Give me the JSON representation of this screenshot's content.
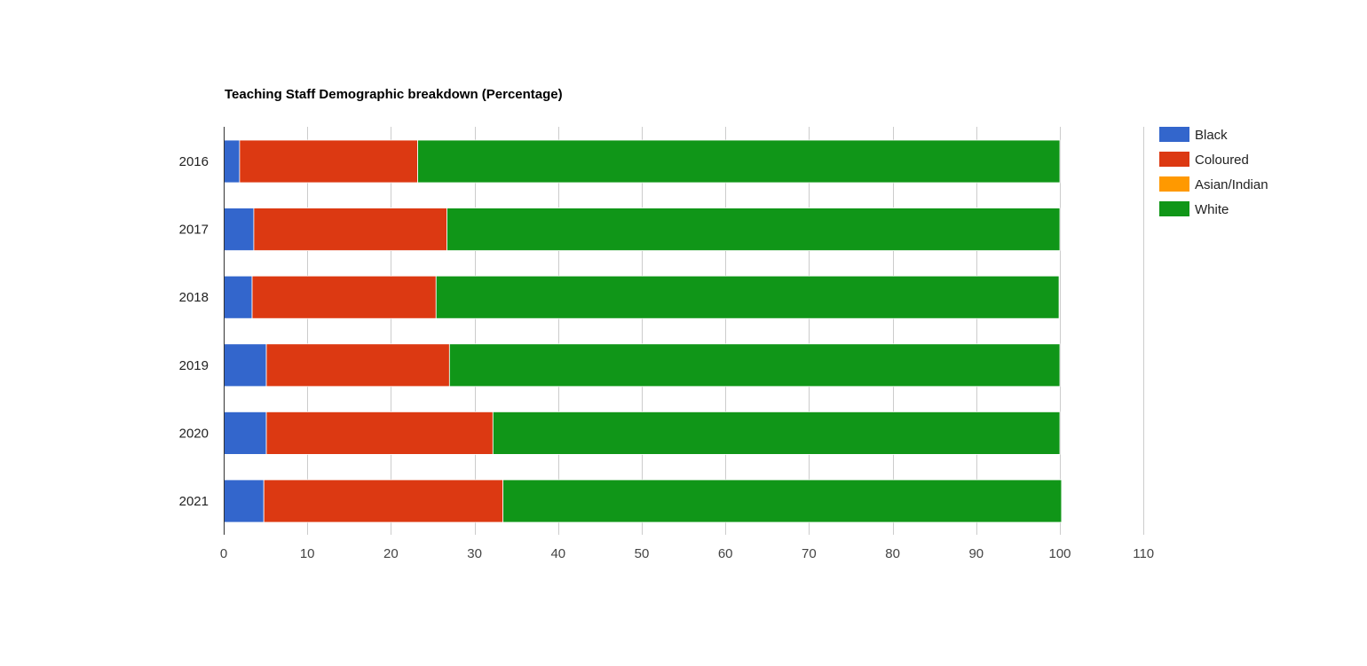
{
  "chart_data": {
    "type": "bar",
    "orientation": "horizontal",
    "stacked": true,
    "title": "Teaching Staff Demographic breakdown (Percentage)",
    "xlabel": "",
    "ylabel": "",
    "categories": [
      "2016",
      "2017",
      "2018",
      "2019",
      "2020",
      "2021"
    ],
    "series": [
      {
        "name": "Black",
        "color": "#3366cc",
        "values": [
          1.9,
          3.6,
          3.4,
          5.1,
          5.1,
          4.8
        ]
      },
      {
        "name": "Coloured",
        "color": "#dc3912",
        "values": [
          21.3,
          23.1,
          22.0,
          21.9,
          27.1,
          28.6
        ]
      },
      {
        "name": "Asian/Indian",
        "color": "#ff9900",
        "values": [
          0,
          0,
          0,
          0,
          0,
          0
        ]
      },
      {
        "name": "White",
        "color": "#109618",
        "values": [
          76.8,
          73.3,
          74.5,
          73.0,
          67.8,
          66.8
        ]
      }
    ],
    "xlim": [
      0,
      110
    ],
    "xticks": [
      "0",
      "10",
      "20",
      "30",
      "40",
      "50",
      "60",
      "70",
      "80",
      "90",
      "100",
      "110"
    ],
    "grid": true,
    "legend_position": "right"
  }
}
